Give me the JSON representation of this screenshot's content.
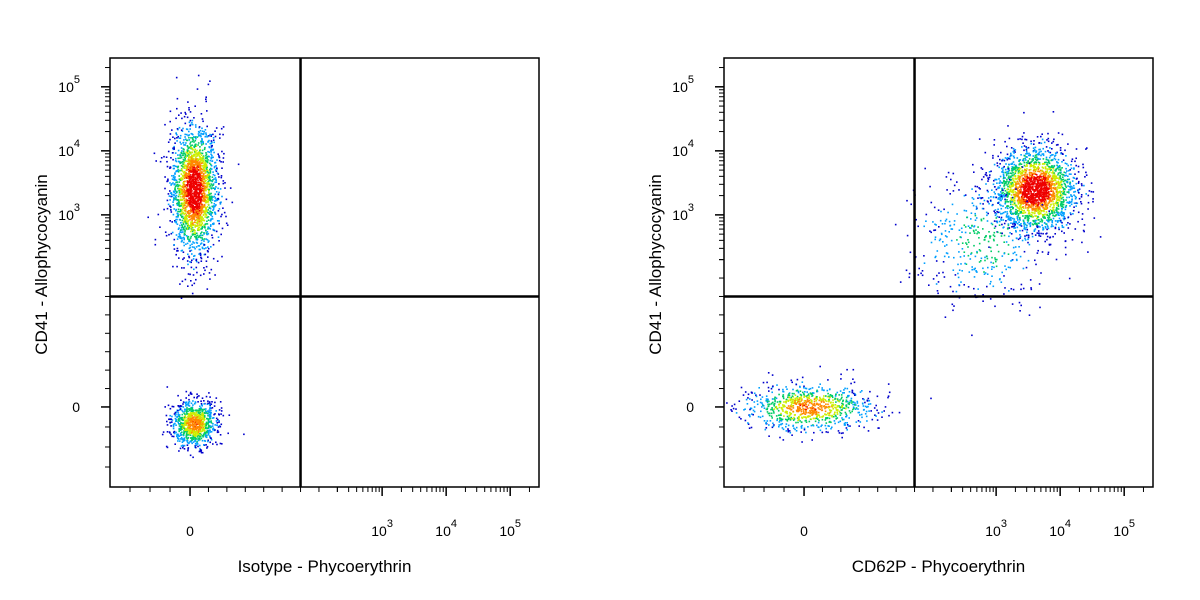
{
  "chart_data": [
    {
      "type": "scatter",
      "title": "",
      "xlabel": "Isotype - Phycoerythrin",
      "ylabel": "CD41 - Allophycocyanin",
      "x_scale": "biexponential",
      "y_scale": "biexponential",
      "x_ticks": [
        {
          "value": 0,
          "base": "0",
          "exp": ""
        },
        {
          "value": 1000,
          "base": "10",
          "exp": "3"
        },
        {
          "value": 10000,
          "base": "10",
          "exp": "4"
        },
        {
          "value": 100000,
          "base": "10",
          "exp": "5"
        }
      ],
      "y_ticks": [
        {
          "value": 0,
          "base": "0",
          "exp": ""
        },
        {
          "value": 1000,
          "base": "10",
          "exp": "3"
        },
        {
          "value": 10000,
          "base": "10",
          "exp": "4"
        },
        {
          "value": 100000,
          "base": "10",
          "exp": "5"
        }
      ],
      "quadrant_gate": {
        "x": 150,
        "y": 150
      },
      "populations": [
        {
          "x_center": 5,
          "y_center": 2500,
          "x_spread": "narrow",
          "y_spread": "wide",
          "density": "high"
        },
        {
          "x_center": 5,
          "y_center": -20,
          "x_spread": "narrow",
          "y_spread": "narrow",
          "density": "medium"
        }
      ],
      "colormap": [
        "#0000cc",
        "#00a0ff",
        "#00cc66",
        "#ccee00",
        "#ff8800",
        "#ee0000"
      ]
    },
    {
      "type": "scatter",
      "title": "",
      "xlabel": "CD62P - Phycoerythrin",
      "ylabel": "CD41 - Allophycocyanin",
      "x_scale": "biexponential",
      "y_scale": "biexponential",
      "x_ticks": [
        {
          "value": 0,
          "base": "0",
          "exp": ""
        },
        {
          "value": 1000,
          "base": "10",
          "exp": "3"
        },
        {
          "value": 10000,
          "base": "10",
          "exp": "4"
        },
        {
          "value": 100000,
          "base": "10",
          "exp": "5"
        }
      ],
      "y_ticks": [
        {
          "value": 0,
          "base": "0",
          "exp": ""
        },
        {
          "value": 1000,
          "base": "10",
          "exp": "3"
        },
        {
          "value": 10000,
          "base": "10",
          "exp": "4"
        },
        {
          "value": 100000,
          "base": "10",
          "exp": "5"
        }
      ],
      "quadrant_gate": {
        "x": 150,
        "y": 150
      },
      "populations": [
        {
          "x_center": 5,
          "y_center": 0,
          "x_spread": "wide",
          "y_spread": "narrow",
          "density": "medium"
        },
        {
          "x_center": 4000,
          "y_center": 2500,
          "x_spread": "medium",
          "y_spread": "medium",
          "density": "high"
        },
        {
          "x_center": 600,
          "y_center": 400,
          "x_spread": "wide",
          "y_spread": "wide",
          "density": "low"
        }
      ],
      "colormap": [
        "#0000cc",
        "#00a0ff",
        "#00cc66",
        "#ccee00",
        "#ff8800",
        "#ee0000"
      ]
    }
  ]
}
